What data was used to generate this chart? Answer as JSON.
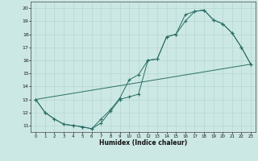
{
  "xlabel": "Humidex (Indice chaleur)",
  "bg_color": "#cce8e4",
  "line_color": "#2a6e65",
  "grid_color": "#b0d4ce",
  "xlim": [
    -0.5,
    23.5
  ],
  "ylim": [
    10.5,
    20.5
  ],
  "xticks": [
    0,
    1,
    2,
    3,
    4,
    5,
    6,
    7,
    8,
    9,
    10,
    11,
    12,
    13,
    14,
    15,
    16,
    17,
    18,
    19,
    20,
    21,
    22,
    23
  ],
  "yticks": [
    11,
    12,
    13,
    14,
    15,
    16,
    17,
    18,
    19,
    20
  ],
  "curve1_x": [
    0,
    1,
    2,
    3,
    4,
    5,
    6,
    7,
    8,
    9,
    10,
    11,
    12,
    13,
    14,
    15,
    16,
    17,
    18,
    19,
    20,
    21,
    22,
    23
  ],
  "curve1_y": [
    13,
    12,
    11.5,
    11.1,
    11.0,
    10.9,
    10.75,
    11.2,
    12.1,
    13.0,
    13.2,
    13.4,
    16.0,
    16.1,
    17.8,
    18.0,
    19.0,
    19.75,
    19.85,
    19.1,
    18.8,
    18.1,
    17.0,
    15.7
  ],
  "curve2_x": [
    0,
    1,
    2,
    3,
    4,
    5,
    6,
    7,
    8,
    9,
    10,
    11,
    12,
    13,
    14,
    15,
    16,
    17,
    18,
    19,
    20,
    21,
    22,
    23
  ],
  "curve2_y": [
    13,
    12,
    11.5,
    11.1,
    11.0,
    10.9,
    10.75,
    11.5,
    12.2,
    13.1,
    14.5,
    14.9,
    16.0,
    16.1,
    17.8,
    18.0,
    19.5,
    19.75,
    19.85,
    19.1,
    18.8,
    18.1,
    17.0,
    15.7
  ],
  "line3_x": [
    0,
    23
  ],
  "line3_y": [
    13.0,
    15.7
  ]
}
